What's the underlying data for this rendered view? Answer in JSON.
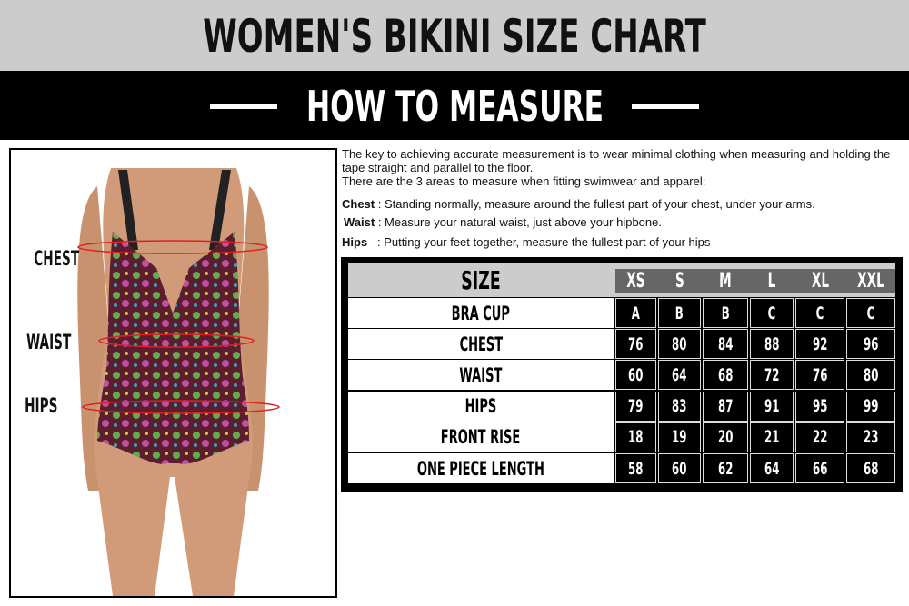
{
  "header": {
    "title": "WOMEN'S BIKINI SIZE CHART",
    "subtitle": "HOW TO MEASURE"
  },
  "photo": {
    "labels": {
      "chest": "CHEST",
      "waist": "WAIST",
      "hips": "HIPS"
    },
    "line_color": "#e02020"
  },
  "intro": {
    "line1": "The key to achieving accurate measurement is to wear minimal clothing when measuring and holding the tape straight and parallel to the floor.",
    "line2": "There are the 3 areas to measure when fitting swimwear and apparel:"
  },
  "criteria": [
    {
      "term": "Chest",
      "text": " : Standing normally, measure around the fullest part of your chest, under your arms."
    },
    {
      "term": "Waist",
      "text": " : Measure your natural waist, just above your hipbone."
    },
    {
      "term": "Hips",
      "text": "   : Putting your feet together, measure the fullest part of your hips"
    }
  ],
  "table": {
    "header_label": "SIZE",
    "sizes": [
      "XS",
      "S",
      "M",
      "L",
      "XL",
      "XXL"
    ],
    "rows": [
      {
        "label": "BRA CUP",
        "values": [
          "A",
          "B",
          "B",
          "C",
          "C",
          "C"
        ]
      },
      {
        "label": "CHEST",
        "values": [
          "76",
          "80",
          "84",
          "88",
          "92",
          "96"
        ]
      },
      {
        "label": "WAIST",
        "values": [
          "60",
          "64",
          "68",
          "72",
          "76",
          "80"
        ]
      },
      {
        "label": "HIPS",
        "values": [
          "79",
          "83",
          "87",
          "91",
          "95",
          "99"
        ]
      },
      {
        "label": "FRONT RISE",
        "values": [
          "18",
          "19",
          "20",
          "21",
          "22",
          "23"
        ]
      },
      {
        "label": "ONE PIECE LENGTH",
        "values": [
          "58",
          "60",
          "62",
          "64",
          "66",
          "68"
        ]
      }
    ]
  }
}
